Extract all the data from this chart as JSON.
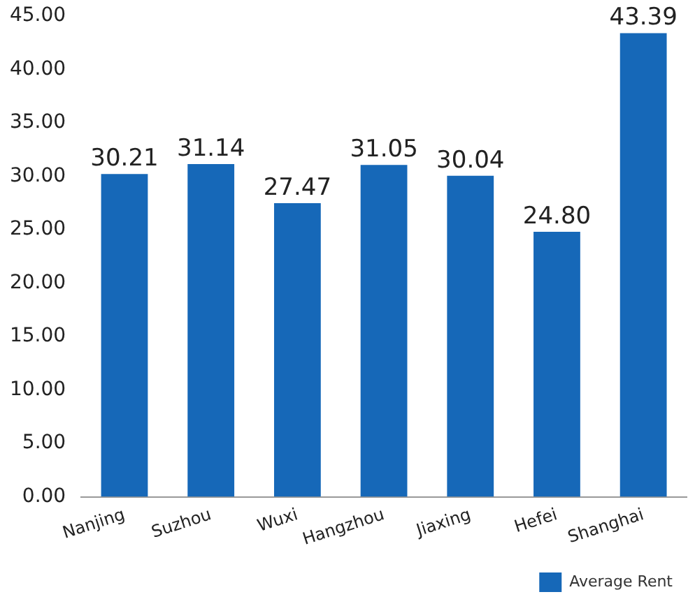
{
  "chart_data": {
    "type": "bar",
    "categories": [
      "Nanjing",
      "Suzhou",
      "Wuxi",
      "Hangzhou",
      "Jiaxing",
      "Hefei",
      "Shanghai"
    ],
    "series": [
      {
        "name": "Average Rent",
        "color": "#1668b8",
        "values": [
          30.21,
          31.14,
          27.47,
          31.05,
          30.04,
          24.8,
          43.39
        ]
      }
    ],
    "value_labels": [
      "30.21",
      "31.14",
      "27.47",
      "31.05",
      "30.04",
      "24.80",
      "43.39"
    ],
    "ylim": [
      0,
      45
    ],
    "yticks": [
      {
        "value": 0,
        "label": "0.00"
      },
      {
        "value": 5,
        "label": "5.00"
      },
      {
        "value": 10,
        "label": "10.00"
      },
      {
        "value": 15,
        "label": "15.00"
      },
      {
        "value": 20,
        "label": "20.00"
      },
      {
        "value": 25,
        "label": "25.00"
      },
      {
        "value": 30,
        "label": "30.00"
      },
      {
        "value": 35,
        "label": "35.00"
      },
      {
        "value": 40,
        "label": "40.00"
      },
      {
        "value": 45,
        "label": "45.00"
      }
    ],
    "grid": false,
    "legend": "bottom right"
  }
}
